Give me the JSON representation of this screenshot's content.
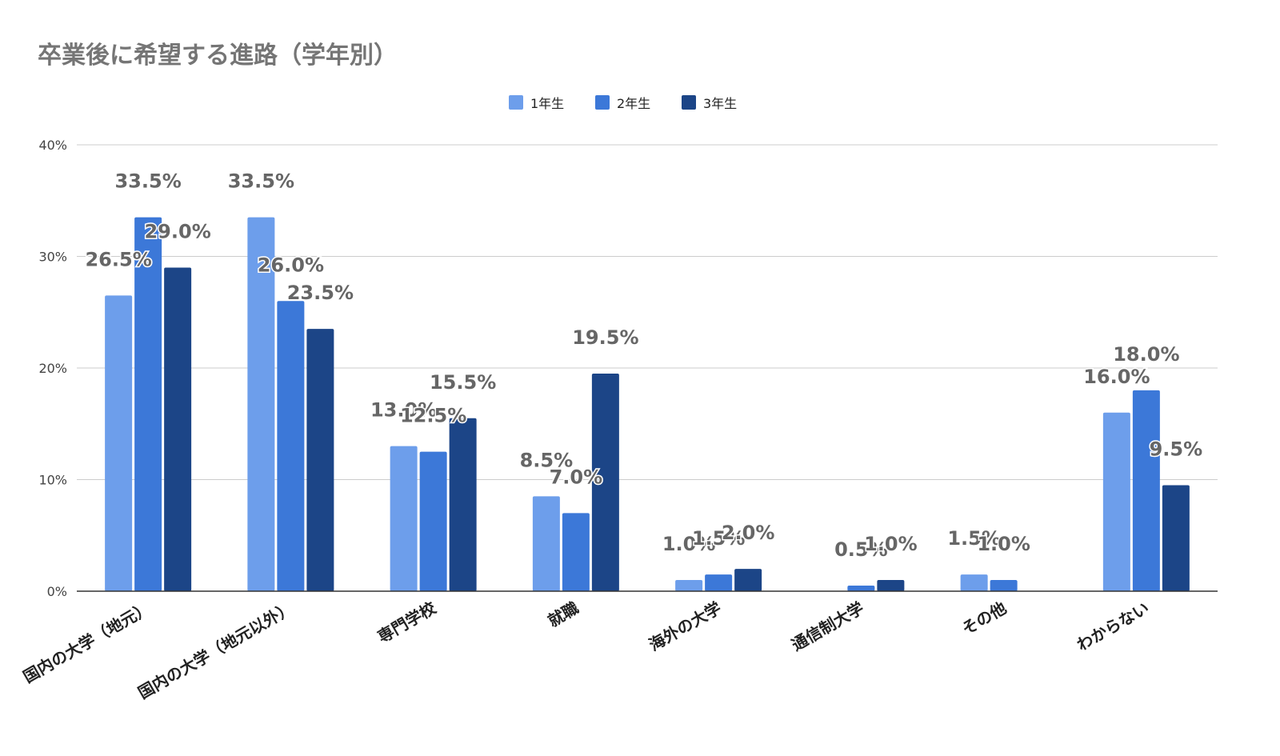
{
  "chart_data": {
    "type": "bar",
    "title": "卒業後に希望する進路（学年別）",
    "xlabel": "",
    "ylabel": "",
    "ylim": [
      0,
      40
    ],
    "yticks": [
      "0%",
      "10%",
      "20%",
      "30%",
      "40%"
    ],
    "ytick_values": [
      0,
      10,
      20,
      30,
      40
    ],
    "grid": true,
    "legend_position": "top-center",
    "categories": [
      "国内の大学（地元）",
      "国内の大学（地元以外）",
      "専門学校",
      "就職",
      "海外の大学",
      "通信制大学",
      "その他",
      "わからない"
    ],
    "series": [
      {
        "name": "1年生",
        "color": "#6d9eeb",
        "values": [
          26.5,
          33.5,
          13.0,
          8.5,
          1.0,
          0,
          1.5,
          16.0
        ],
        "labels": [
          "26.5%",
          "33.5%",
          "13.0%",
          "8.5%",
          "1.0%",
          "",
          "1.5%",
          "16.0%"
        ]
      },
      {
        "name": "2年生",
        "color": "#3c78d8",
        "values": [
          33.5,
          26.0,
          12.5,
          7.0,
          1.5,
          0.5,
          1.0,
          18.0
        ],
        "labels": [
          "33.5%",
          "26.0%",
          "12.5%",
          "7.0%",
          "1.5%",
          "0.5%",
          "1.0%",
          "18.0%"
        ]
      },
      {
        "name": "3年生",
        "color": "#1c4587",
        "values": [
          29.0,
          23.5,
          15.5,
          19.5,
          2.0,
          1.0,
          0,
          9.5
        ],
        "labels": [
          "29.0%",
          "23.5%",
          "15.5%",
          "19.5%",
          "2.0%",
          "1.0%",
          "",
          "9.5%"
        ]
      }
    ],
    "colors": {
      "grid": "#cccccc",
      "axis": "#333333",
      "label": "#666666",
      "tick": "#444444"
    }
  }
}
